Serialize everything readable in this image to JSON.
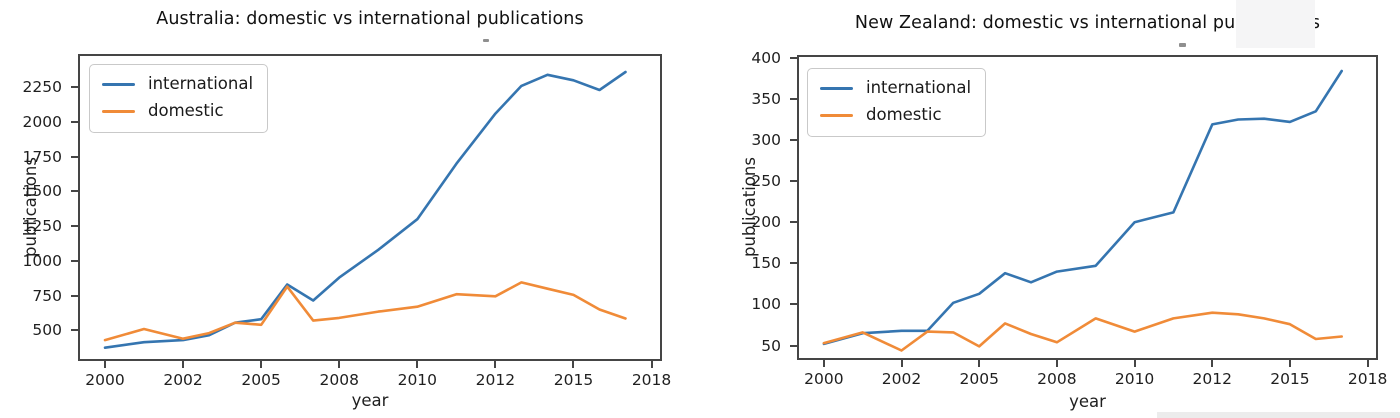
{
  "page": {
    "background": "#ffffff"
  },
  "chart_data": [
    {
      "type": "line",
      "title": "Australia: domestic vs international publications",
      "xlabel": "year",
      "ylabel": "publications",
      "x": [
        2000,
        2001,
        2002,
        2003,
        2004,
        2005,
        2006,
        2007,
        2008,
        2009,
        2010,
        2011,
        2012,
        2013,
        2014,
        2015,
        2016,
        2017
      ],
      "series": [
        {
          "name": "international",
          "color": "#3575b0",
          "values": [
            375,
            415,
            430,
            465,
            555,
            580,
            830,
            715,
            880,
            1080,
            1300,
            1700,
            2060,
            2260,
            2340,
            2300,
            2230,
            2360
          ]
        },
        {
          "name": "domestic",
          "color": "#f08b38",
          "values": [
            430,
            510,
            440,
            480,
            555,
            540,
            815,
            570,
            590,
            635,
            670,
            760,
            745,
            845,
            800,
            755,
            650,
            585
          ]
        }
      ],
      "xtick_labels": [
        "2000",
        "2002",
        "2005",
        "2008",
        "2010",
        "2012",
        "2015",
        "2018"
      ],
      "xtick_years": [
        2000,
        2002,
        2005,
        2008,
        2010,
        2012,
        2015,
        2018
      ],
      "yticks": [
        500,
        750,
        1000,
        1250,
        1500,
        1750,
        2000,
        2250
      ],
      "ylim": [
        265,
        2475
      ],
      "grid": false,
      "legend_position": "upper left"
    },
    {
      "type": "line",
      "title": "New Zealand: domestic vs international publications",
      "xlabel": "year",
      "ylabel": "publications",
      "x": [
        2000,
        2001,
        2002,
        2003,
        2004,
        2005,
        2006,
        2007,
        2008,
        2009,
        2010,
        2011,
        2012,
        2013,
        2014,
        2015,
        2016,
        2017
      ],
      "series": [
        {
          "name": "international",
          "color": "#3575b0",
          "values": [
            52,
            65,
            68,
            68,
            102,
            113,
            138,
            127,
            140,
            147,
            200,
            212,
            319,
            325,
            326,
            322,
            335,
            384
          ]
        },
        {
          "name": "domestic",
          "color": "#f08b38",
          "values": [
            53,
            66,
            44,
            67,
            66,
            49,
            77,
            64,
            54,
            83,
            67,
            83,
            90,
            88,
            83,
            76,
            58,
            61
          ]
        }
      ],
      "xtick_labels": [
        "2000",
        "2002",
        "2005",
        "2008",
        "2010",
        "2012",
        "2015",
        "2018"
      ],
      "xtick_years": [
        2000,
        2002,
        2005,
        2008,
        2010,
        2012,
        2015,
        2018
      ],
      "yticks": [
        50,
        100,
        150,
        200,
        250,
        300,
        350,
        400
      ],
      "ylim": [
        30,
        401
      ],
      "grid": false,
      "legend_position": "upper left"
    }
  ]
}
